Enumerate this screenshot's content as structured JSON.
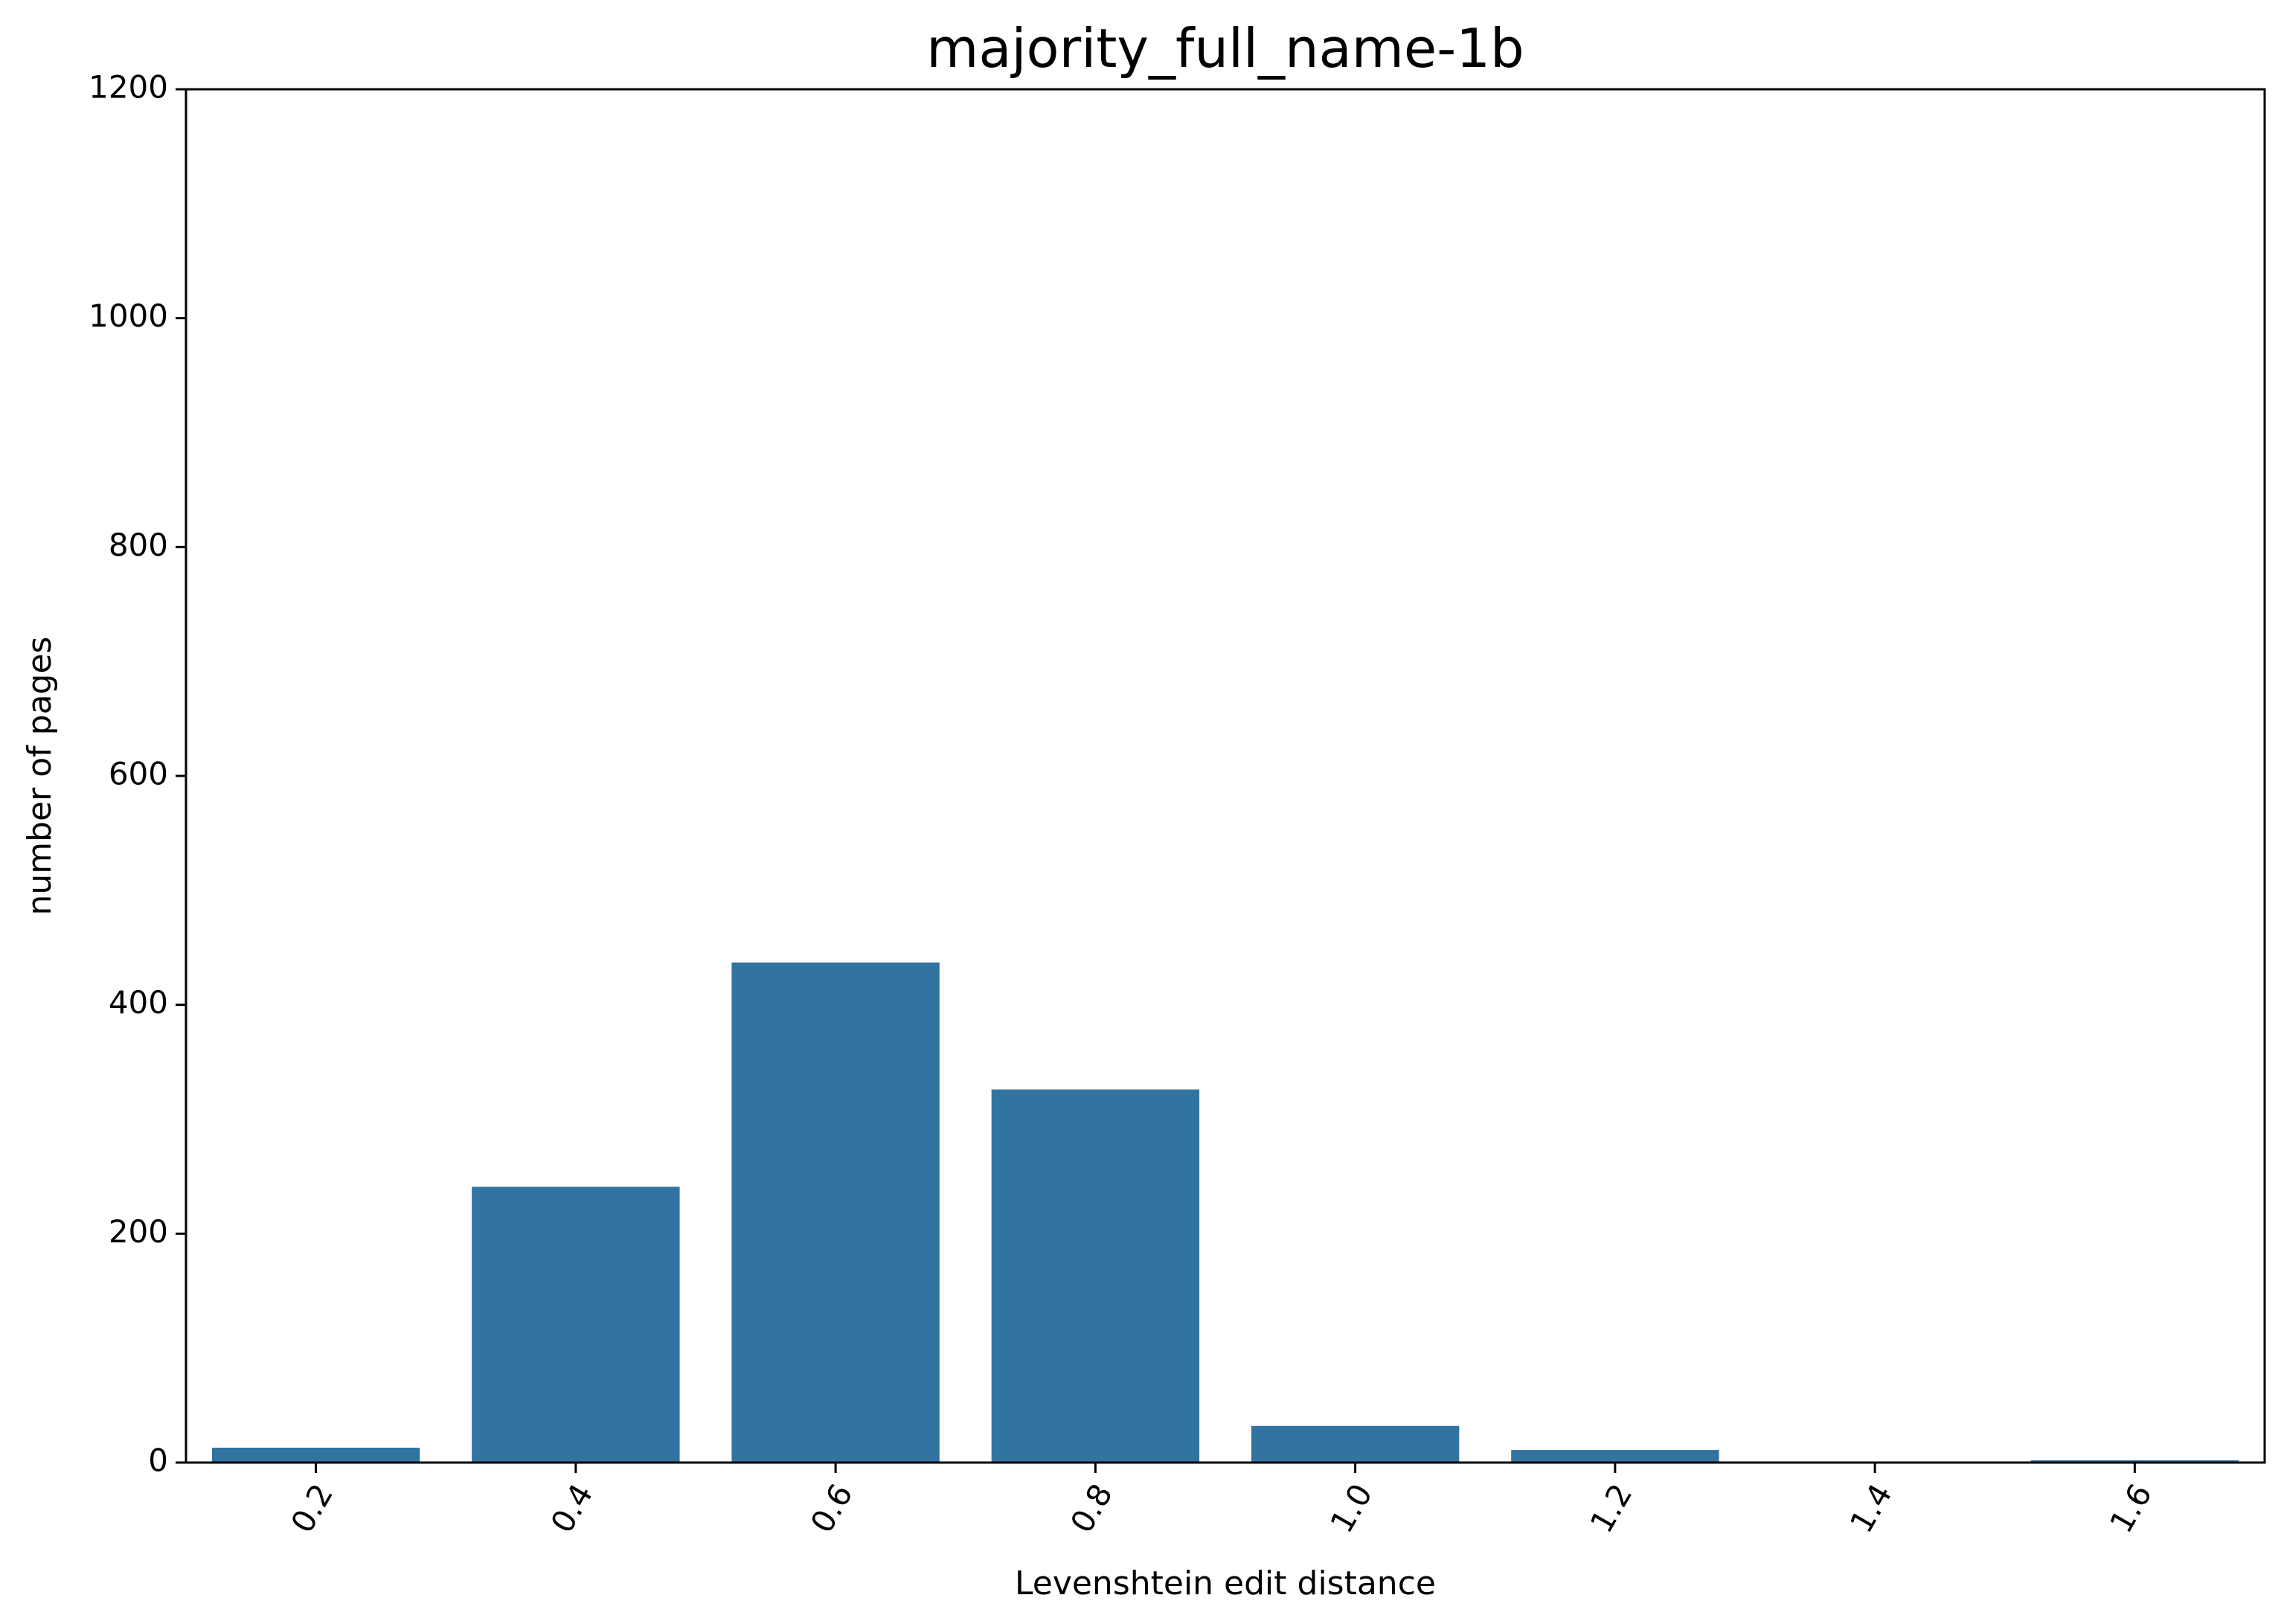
{
  "chart_data": {
    "type": "bar",
    "title": "majority_full_name-1b",
    "xlabel": "Levenshtein edit distance",
    "ylabel": "number of pages",
    "categories": [
      "0.2",
      "0.4",
      "0.6",
      "0.8",
      "1.0",
      "1.2",
      "1.4",
      "1.6"
    ],
    "values": [
      13,
      241,
      437,
      326,
      32,
      11,
      0,
      2
    ],
    "ylim": [
      0,
      1200
    ],
    "yticks": [
      0,
      200,
      400,
      600,
      800,
      1000,
      1200
    ],
    "x_tick_rotation_deg": -60,
    "bar_color": "#3274a1",
    "grid": false,
    "legend": "none"
  }
}
